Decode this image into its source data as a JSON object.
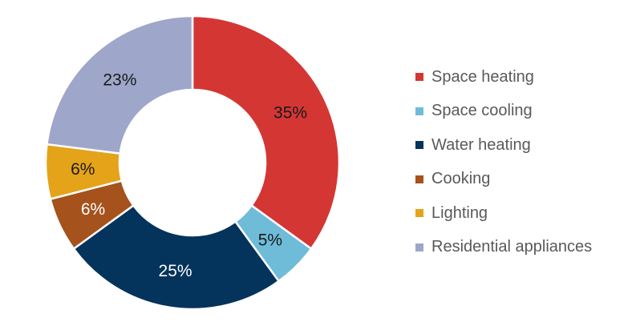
{
  "chart_data": {
    "type": "pie",
    "variant": "donut",
    "categories": [
      "Space heating",
      "Space cooling",
      "Water heating",
      "Cooking",
      "Lighting",
      "Residential appliances"
    ],
    "values": [
      35,
      5,
      25,
      6,
      6,
      23
    ],
    "labels": [
      "35%",
      "5%",
      "25%",
      "6%",
      "6%",
      "23%"
    ],
    "colors": [
      "#d43634",
      "#6fbcd9",
      "#04335b",
      "#a5521c",
      "#e5a31a",
      "#9ea6ca"
    ],
    "label_colors": [
      "#1a1a1a",
      "#1a1a1a",
      "#ffffff",
      "#ffffff",
      "#1a1a1a",
      "#1a1a1a"
    ],
    "legend_position": "right",
    "title": ""
  }
}
